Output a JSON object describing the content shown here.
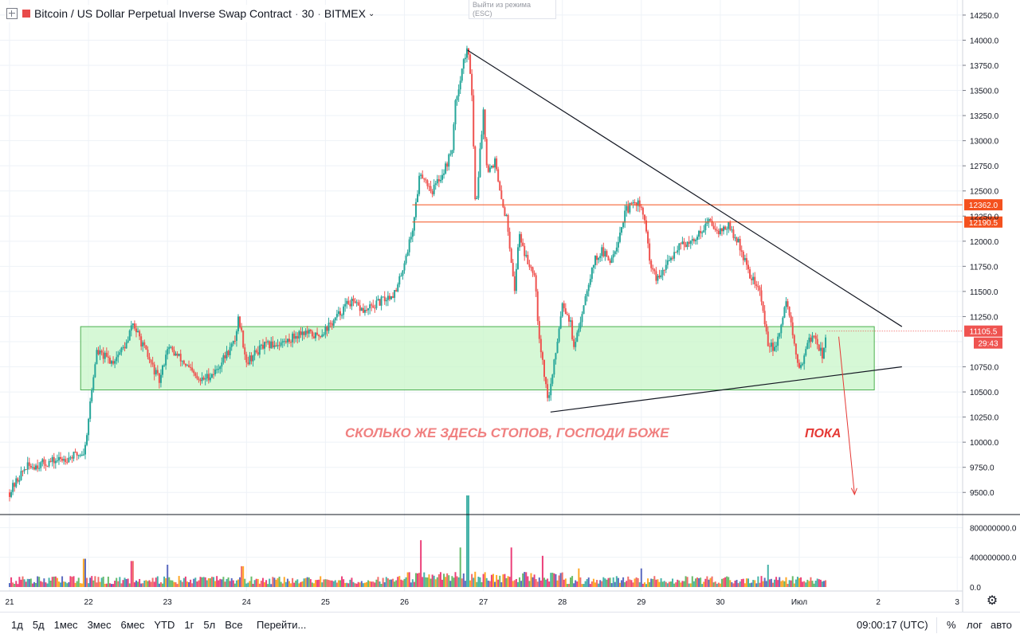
{
  "header": {
    "symbol": "Bitcoin / US Dollar Perpetual Inverse Swap Contract",
    "interval": "30",
    "exchange": "BITMEX",
    "dot": "·"
  },
  "exit_fullscreen": {
    "line1": "Выйти из режима",
    "line2": "(ESC)"
  },
  "bottom_bar": {
    "periods": [
      "1д",
      "5д",
      "1мес",
      "3мес",
      "6мес",
      "YTD",
      "1г",
      "5л",
      "Все"
    ],
    "goto": "Перейти...",
    "clock": "09:00:17 (UTC)",
    "percent": "%",
    "log": "лог",
    "auto": "авто"
  },
  "colors": {
    "up": "#26a69a",
    "down": "#ef5350",
    "zone_fill": "#c8f5c8",
    "zone_border": "#4caf50",
    "level_line": "#f4511e",
    "annotation": "#f08080",
    "annotation_strong": "#e53935",
    "grid": "#eef2f7"
  },
  "chart_data": {
    "type": "candlestick",
    "price_axis": {
      "ticks": [
        9500,
        9750,
        10000,
        10250,
        10500,
        10750,
        11000,
        11250,
        11500,
        11750,
        12000,
        12250,
        12500,
        12750,
        13000,
        13250,
        13500,
        13750,
        14000,
        14250
      ],
      "tick_labels": [
        "9500.0",
        "9750.0",
        "10000.0",
        "10250.0",
        "10500.0",
        "10750.0",
        "",
        "11250.0",
        "11500.0",
        "11750.0",
        "12000.0",
        "12250.0",
        "12500.0",
        "12750.0",
        "13000.0",
        "13250.0",
        "13500.0",
        "13750.0",
        "14000.0",
        "14250.0"
      ],
      "range": [
        9280,
        14400
      ]
    },
    "time_axis": {
      "labels": [
        "21",
        "22",
        "23",
        "24",
        "25",
        "26",
        "27",
        "28",
        "29",
        "30",
        "Июл",
        "2",
        "3"
      ],
      "range": [
        0,
        12
      ]
    },
    "price_path": [
      [
        0,
        9500
      ],
      [
        0.2,
        9750
      ],
      [
        0.5,
        9800
      ],
      [
        0.75,
        9850
      ],
      [
        0.95,
        9900
      ],
      [
        1.0,
        10250
      ],
      [
        1.1,
        10900
      ],
      [
        1.3,
        10800
      ],
      [
        1.5,
        11000
      ],
      [
        1.55,
        11200
      ],
      [
        1.75,
        10850
      ],
      [
        1.9,
        10600
      ],
      [
        2.0,
        10950
      ],
      [
        2.2,
        10800
      ],
      [
        2.4,
        10600
      ],
      [
        2.6,
        10700
      ],
      [
        2.85,
        11000
      ],
      [
        2.9,
        11250
      ],
      [
        3.0,
        10800
      ],
      [
        3.2,
        10950
      ],
      [
        3.5,
        11000
      ],
      [
        3.7,
        11100
      ],
      [
        3.9,
        11050
      ],
      [
        4.1,
        11200
      ],
      [
        4.3,
        11400
      ],
      [
        4.5,
        11300
      ],
      [
        4.7,
        11400
      ],
      [
        4.9,
        11500
      ],
      [
        5.0,
        11800
      ],
      [
        5.1,
        12100
      ],
      [
        5.2,
        12700
      ],
      [
        5.35,
        12500
      ],
      [
        5.5,
        12700
      ],
      [
        5.6,
        12900
      ],
      [
        5.65,
        13400
      ],
      [
        5.75,
        13800
      ],
      [
        5.8,
        13900
      ],
      [
        5.85,
        13600
      ],
      [
        5.9,
        12300
      ],
      [
        6.0,
        13300
      ],
      [
        6.05,
        12700
      ],
      [
        6.15,
        12800
      ],
      [
        6.2,
        12500
      ],
      [
        6.3,
        12200
      ],
      [
        6.4,
        11500
      ],
      [
        6.45,
        12100
      ],
      [
        6.55,
        11800
      ],
      [
        6.65,
        11700
      ],
      [
        6.7,
        11100
      ],
      [
        6.75,
        10800
      ],
      [
        6.82,
        10400
      ],
      [
        6.9,
        10800
      ],
      [
        7.0,
        11400
      ],
      [
        7.1,
        11200
      ],
      [
        7.15,
        10900
      ],
      [
        7.3,
        11500
      ],
      [
        7.4,
        11800
      ],
      [
        7.5,
        11900
      ],
      [
        7.6,
        11800
      ],
      [
        7.7,
        12000
      ],
      [
        7.8,
        12300
      ],
      [
        7.95,
        12400
      ],
      [
        8.05,
        12200
      ],
      [
        8.1,
        11800
      ],
      [
        8.2,
        11600
      ],
      [
        8.35,
        11800
      ],
      [
        8.5,
        12000
      ],
      [
        8.6,
        11950
      ],
      [
        8.7,
        12050
      ],
      [
        8.85,
        12200
      ],
      [
        9.0,
        12100
      ],
      [
        9.1,
        12150
      ],
      [
        9.25,
        11950
      ],
      [
        9.35,
        11700
      ],
      [
        9.5,
        11500
      ],
      [
        9.6,
        11000
      ],
      [
        9.7,
        10900
      ],
      [
        9.8,
        11300
      ],
      [
        9.85,
        11400
      ],
      [
        9.95,
        10900
      ],
      [
        10.0,
        10700
      ],
      [
        10.1,
        11000
      ],
      [
        10.2,
        11050
      ],
      [
        10.3,
        10850
      ],
      [
        10.35,
        11105
      ]
    ],
    "volume_axis": {
      "ticks": [
        0,
        400000000,
        800000000
      ],
      "tick_labels": [
        "0.0",
        "400000000.0",
        "800000000.0"
      ],
      "range": [
        0,
        900000000
      ]
    },
    "volume_spikes": [
      [
        0.95,
        380000000
      ],
      [
        1.55,
        350000000
      ],
      [
        2.0,
        300000000
      ],
      [
        2.95,
        280000000
      ],
      [
        5.2,
        450000000
      ],
      [
        5.7,
        380000000
      ],
      [
        5.8,
        880000000
      ],
      [
        6.35,
        380000000
      ],
      [
        6.75,
        300000000
      ],
      [
        7.2,
        250000000
      ],
      [
        8.0,
        250000000
      ],
      [
        9.6,
        300000000
      ]
    ],
    "consolidation_zone": {
      "x": [
        0.9,
        10.95
      ],
      "y": [
        10520,
        11150
      ]
    },
    "horizontal_levels": [
      {
        "price": 12362.0,
        "label": "12362.0",
        "x_start": 5.1
      },
      {
        "price": 12190.5,
        "label": "12190.5",
        "x_start": 5.1
      }
    ],
    "trendlines": [
      {
        "from": [
          5.8,
          13900
        ],
        "to": [
          11.3,
          11150
        ],
        "color": "#131722"
      },
      {
        "from": [
          6.85,
          10300
        ],
        "to": [
          11.3,
          10750
        ],
        "color": "#131722"
      }
    ],
    "forecast_arrow": {
      "from": [
        10.5,
        11050
      ],
      "to": [
        10.7,
        9480
      ]
    },
    "last_price": {
      "value": 11105.5,
      "label": "11105.5",
      "countdown": "29:43"
    },
    "annotations": [
      {
        "text": "СКОЛЬКО ЖЕ ЗДЕСЬ СТОПОВ, ГОСПОДИ БОЖЕ",
        "x": 6.3,
        "price": 10050
      },
      {
        "text": "ПОКА",
        "x": 10.3,
        "price": 10050
      }
    ]
  }
}
